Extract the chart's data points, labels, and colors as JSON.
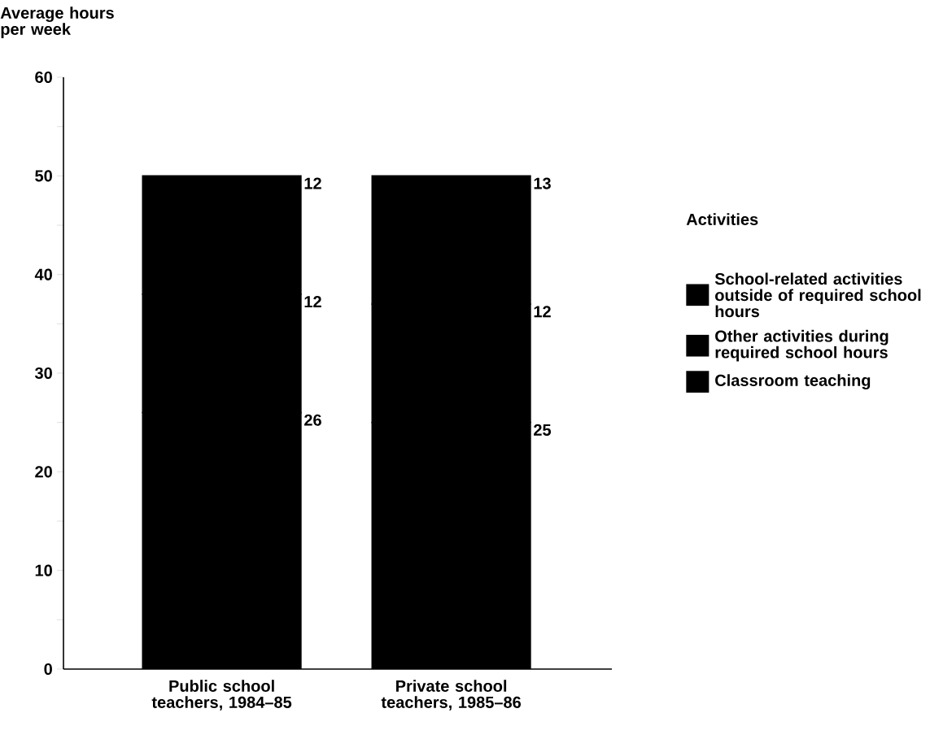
{
  "chart_data": {
    "type": "bar",
    "stacked": true,
    "ylabel": "Average hours per week",
    "legend_title": "Activities",
    "legend": "right",
    "data_labels": true,
    "categories": [
      "Public school teachers, 1984–85",
      "Private school teachers, 1985–86"
    ],
    "series": [
      {
        "name": "Classroom teaching",
        "color": "#000000",
        "values": [
          26,
          25
        ]
      },
      {
        "name": "Other activities during required school hours",
        "color": "#000000",
        "values": [
          12,
          12
        ]
      },
      {
        "name": "School-related activities outside of required school hours",
        "color": "#000000",
        "values": [
          12,
          13
        ]
      }
    ],
    "ylim": [
      0,
      60
    ],
    "yticks": [
      0,
      {
        "value": 5,
        "label": null
      },
      10,
      {
        "value": 15,
        "label": null
      },
      20,
      {
        "value": 25,
        "label": null
      },
      30,
      {
        "value": 35,
        "label": null
      },
      40,
      {
        "value": 45,
        "label": null
      },
      50,
      {
        "value": 55,
        "label": null
      },
      60
    ]
  }
}
